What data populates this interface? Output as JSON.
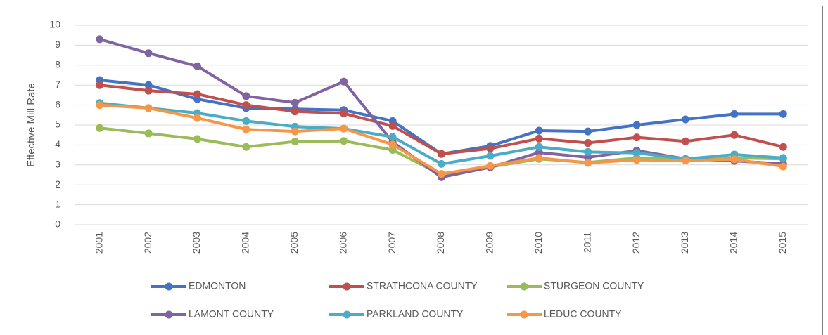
{
  "chart_data": {
    "type": "line",
    "y_label": "Effective Mill Rate",
    "categories": [
      "2001",
      "2002",
      "2003",
      "2004",
      "2005",
      "2006",
      "2007",
      "2008",
      "2009",
      "2010",
      "2011",
      "2012",
      "2013",
      "2014",
      "2015"
    ],
    "ylim": [
      0,
      10
    ],
    "yticks": [
      0,
      1,
      2,
      3,
      4,
      5,
      6,
      7,
      8,
      9,
      10
    ],
    "grid": true,
    "legend": "bottom",
    "series": [
      {
        "name": "EDMONTON",
        "color": "#4472c4",
        "values": [
          7.25,
          7.0,
          6.3,
          5.85,
          5.8,
          5.75,
          5.2,
          3.55,
          3.95,
          4.72,
          4.68,
          5.0,
          5.28,
          5.55,
          5.55
        ]
      },
      {
        "name": "STRATHCONA COUNTY",
        "color": "#c0504d",
        "values": [
          7.0,
          6.72,
          6.55,
          6.0,
          5.68,
          5.58,
          4.95,
          3.55,
          3.82,
          4.32,
          4.1,
          4.38,
          4.18,
          4.5,
          3.9
        ]
      },
      {
        "name": "STURGEON COUNTY",
        "color": "#9bbb59",
        "values": [
          4.85,
          4.58,
          4.3,
          3.9,
          4.17,
          4.2,
          3.75,
          2.5,
          2.9,
          3.3,
          3.12,
          3.35,
          3.28,
          3.35,
          3.3
        ]
      },
      {
        "name": "LAMONT COUNTY",
        "color": "#8064a2",
        "values": [
          9.3,
          8.6,
          7.95,
          6.45,
          6.12,
          7.18,
          4.15,
          2.38,
          2.88,
          3.62,
          3.38,
          3.72,
          3.3,
          3.2,
          3.05
        ]
      },
      {
        "name": "PARKLAND COUNTY",
        "color": "#4bacc6",
        "values": [
          6.1,
          5.85,
          5.6,
          5.2,
          4.92,
          4.82,
          4.4,
          3.05,
          3.45,
          3.9,
          3.65,
          3.6,
          3.3,
          3.52,
          3.35
        ]
      },
      {
        "name": "LEDUC COUNTY",
        "color": "#f79646",
        "values": [
          6.0,
          5.85,
          5.35,
          4.78,
          4.68,
          4.82,
          4.02,
          2.55,
          2.95,
          3.35,
          3.1,
          3.25,
          3.22,
          3.28,
          2.92
        ]
      }
    ]
  }
}
